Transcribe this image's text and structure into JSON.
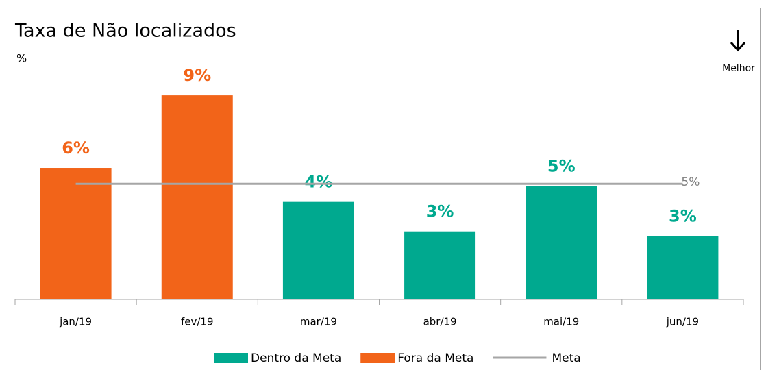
{
  "chart_data": {
    "type": "bar",
    "title": "Taxa de Não localizados",
    "subtitle": "%",
    "annotation": "Melhor",
    "categories": [
      "jan/19",
      "fev/19",
      "mar/19",
      "abr/19",
      "mai/19",
      "jun/19"
    ],
    "series": [
      {
        "name": "Dentro da Meta",
        "color": "#00a98f",
        "values": [
          null,
          null,
          4.3,
          3,
          5,
          2.8
        ],
        "value_labels": [
          null,
          null,
          "4%",
          "3%",
          "5%",
          "3%"
        ]
      },
      {
        "name": "Fora da Meta",
        "color": "#f26419",
        "values": [
          5.8,
          9,
          null,
          null,
          null,
          null
        ],
        "value_labels": [
          "6%",
          "9%",
          null,
          null,
          null,
          null
        ]
      }
    ],
    "reference_line": {
      "name": "Meta",
      "value": 5.1,
      "value_label": "5%",
      "color": "#a6a6a6"
    },
    "ylim": [
      0,
      10
    ]
  }
}
